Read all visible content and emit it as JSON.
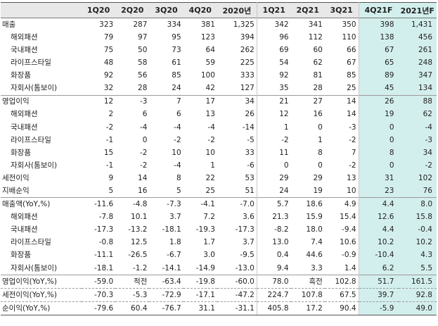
{
  "headers": [
    "",
    "1Q20",
    "2Q20",
    "3Q20",
    "4Q20",
    "2020년",
    "1Q21",
    "2Q21",
    "3Q21",
    "4Q21F",
    "2021년F"
  ],
  "rows": [
    {
      "label": "매출",
      "indent": false,
      "values": [
        "323",
        "287",
        "334",
        "381",
        "1,325",
        "342",
        "341",
        "350",
        "398",
        "1,431"
      ]
    },
    {
      "label": "해외패션",
      "indent": true,
      "values": [
        "79",
        "97",
        "95",
        "123",
        "394",
        "96",
        "112",
        "110",
        "138",
        "456"
      ]
    },
    {
      "label": "국내패션",
      "indent": true,
      "values": [
        "75",
        "50",
        "73",
        "64",
        "262",
        "69",
        "60",
        "66",
        "67",
        "261"
      ]
    },
    {
      "label": "라이프스타일",
      "indent": true,
      "values": [
        "48",
        "58",
        "61",
        "59",
        "225",
        "54",
        "62",
        "67",
        "65",
        "248"
      ]
    },
    {
      "label": "화장품",
      "indent": true,
      "values": [
        "92",
        "56",
        "85",
        "100",
        "333",
        "92",
        "81",
        "85",
        "89",
        "347"
      ]
    },
    {
      "label": "자회사(톰보이)",
      "indent": true,
      "values": [
        "32",
        "28",
        "24",
        "42",
        "127",
        "35",
        "28",
        "25",
        "45",
        "134"
      ]
    },
    {
      "label": "영업이익",
      "indent": false,
      "sep": true,
      "values": [
        "12",
        "-3",
        "7",
        "17",
        "34",
        "21",
        "27",
        "14",
        "26",
        "88"
      ]
    },
    {
      "label": "해외패션",
      "indent": true,
      "values": [
        "2",
        "6",
        "6",
        "13",
        "26",
        "12",
        "16",
        "14",
        "19",
        "62"
      ]
    },
    {
      "label": "국내패션",
      "indent": true,
      "values": [
        "-2",
        "-4",
        "-4",
        "-4",
        "-14",
        "1",
        "0",
        "-3",
        "0",
        "-4"
      ]
    },
    {
      "label": "라이프스타일",
      "indent": true,
      "values": [
        "-1",
        "0",
        "-2",
        "-2",
        "-5",
        "-2",
        "1",
        "-2",
        "0",
        "-3"
      ]
    },
    {
      "label": "화장품",
      "indent": true,
      "values": [
        "15",
        "-2",
        "10",
        "10",
        "33",
        "11",
        "8",
        "7",
        "8",
        "34"
      ]
    },
    {
      "label": "자회사(톰보이)",
      "indent": true,
      "values": [
        "-1",
        "-2",
        "-4",
        "1",
        "-6",
        "0",
        "0",
        "-2",
        "0",
        "-2"
      ]
    },
    {
      "label": "세전이익",
      "indent": false,
      "values": [
        "9",
        "14",
        "8",
        "22",
        "53",
        "29",
        "29",
        "13",
        "31",
        "102"
      ]
    },
    {
      "label": "지배순익",
      "indent": false,
      "values": [
        "5",
        "16",
        "5",
        "25",
        "51",
        "24",
        "19",
        "10",
        "23",
        "76"
      ]
    },
    {
      "label": "매출액(YoY,%)",
      "indent": false,
      "sep": true,
      "values": [
        "-11.6",
        "-4.8",
        "-7.3",
        "-4.1",
        "-7.0",
        "5.7",
        "18.6",
        "4.9",
        "4.4",
        "8.0"
      ]
    },
    {
      "label": "해외패션",
      "indent": true,
      "values": [
        "-7.8",
        "10.1",
        "3.7",
        "7.2",
        "3.6",
        "21.3",
        "15.9",
        "15.4",
        "12.6",
        "15.8"
      ]
    },
    {
      "label": "국내패션",
      "indent": true,
      "values": [
        "-17.3",
        "-13.2",
        "-18.1",
        "-19.3",
        "-17.3",
        "-8.2",
        "18.0",
        "-9.4",
        "4.4",
        "-0.4"
      ]
    },
    {
      "label": "라이프스타일",
      "indent": true,
      "values": [
        "-0.8",
        "12.5",
        "1.8",
        "1.7",
        "3.7",
        "13.0",
        "7.4",
        "10.6",
        "10.2",
        "10.2"
      ]
    },
    {
      "label": "화장품",
      "indent": true,
      "values": [
        "-11.1",
        "-26.5",
        "-6.7",
        "3.0",
        "-9.5",
        "0.4",
        "44.6",
        "-0.9",
        "-10.4",
        "4.3"
      ]
    },
    {
      "label": "자회사(톰보이)",
      "indent": true,
      "values": [
        "-18.1",
        "-1.2",
        "-14.1",
        "-14.9",
        "-13.0",
        "9.4",
        "3.3",
        "1.4",
        "6.2",
        "5.5"
      ]
    },
    {
      "label": "영업이익(YoY,%)",
      "indent": false,
      "sep": true,
      "values": [
        "-59.0",
        "적전",
        "-63.4",
        "-19.8",
        "-60.0",
        "78.0",
        "흑전",
        "102.8",
        "51.7",
        "161.5"
      ]
    },
    {
      "label": "세전이익(YoY,%)",
      "indent": false,
      "dash": true,
      "values": [
        "-70.3",
        "-5.3",
        "-72.9",
        "-17.1",
        "-47.2",
        "224.7",
        "107.8",
        "67.5",
        "39.7",
        "92.8"
      ]
    },
    {
      "label": "순이익(YoY,%)",
      "indent": false,
      "dash": true,
      "last": true,
      "values": [
        "-79.6",
        "60.4",
        "-76.7",
        "31.1",
        "-31.1",
        "405.8",
        "17.2",
        "90.4",
        "-5.9",
        "49.0"
      ]
    }
  ]
}
